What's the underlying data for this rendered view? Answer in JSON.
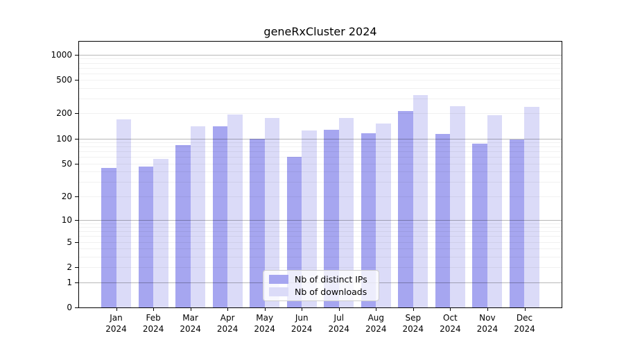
{
  "chart_data": {
    "type": "bar",
    "title": "geneRxCluster 2024",
    "categories": [
      "Jan",
      "Feb",
      "Mar",
      "Apr",
      "May",
      "Jun",
      "Jul",
      "Aug",
      "Sep",
      "Oct",
      "Nov",
      "Dec"
    ],
    "year_label": "2024",
    "series": [
      {
        "name": "Nb of distinct IPs",
        "color": "#a6a6f0",
        "values": [
          44,
          46,
          83,
          140,
          100,
          60,
          127,
          117,
          215,
          114,
          87,
          98
        ]
      },
      {
        "name": "Nb of downloads",
        "color": "#dbdbf8",
        "values": [
          170,
          57,
          140,
          193,
          178,
          126,
          176,
          150,
          330,
          245,
          190,
          240
        ]
      }
    ],
    "y_axis": {
      "ticks": [
        1000,
        500,
        200,
        100,
        50,
        20,
        10,
        5,
        2,
        1,
        0
      ],
      "major_gridlines": [
        1,
        10,
        100,
        1000
      ],
      "scale": "log10(value+1)",
      "ylim": [
        0,
        1430
      ]
    },
    "legend_position": "bottom-center",
    "grid": true
  },
  "colors": {
    "background": "#ffffff",
    "axis": "#000000",
    "bar_dark": "#a6a6f0",
    "bar_light": "#dbdbf8"
  }
}
